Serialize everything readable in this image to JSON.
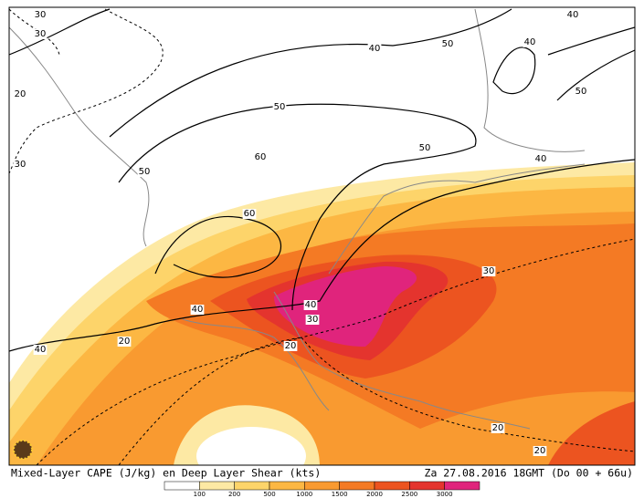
{
  "footer": {
    "left": "Mixed-Layer CAPE (J/kg) en Deep Layer Shear (kts)",
    "right": "Za 27.08.2016 18GMT (Do 00 + 66u)"
  },
  "colorbar": {
    "colors": [
      "#ffffff",
      "#fde9a4",
      "#fdd46a",
      "#fcb743",
      "#f99a30",
      "#f47a24",
      "#ec5420",
      "#e4342e",
      "#e0247c"
    ],
    "labels": [
      100,
      200,
      500,
      1000,
      1500,
      2000,
      2500,
      3000
    ]
  },
  "contour_labels": [
    "30",
    "30",
    "20",
    "30",
    "40",
    "50",
    "40",
    "40",
    "50",
    "50",
    "60",
    "50",
    "60",
    "50",
    "40",
    "30",
    "40",
    "30",
    "20",
    "40",
    "20",
    "20",
    "20",
    "40"
  ]
}
